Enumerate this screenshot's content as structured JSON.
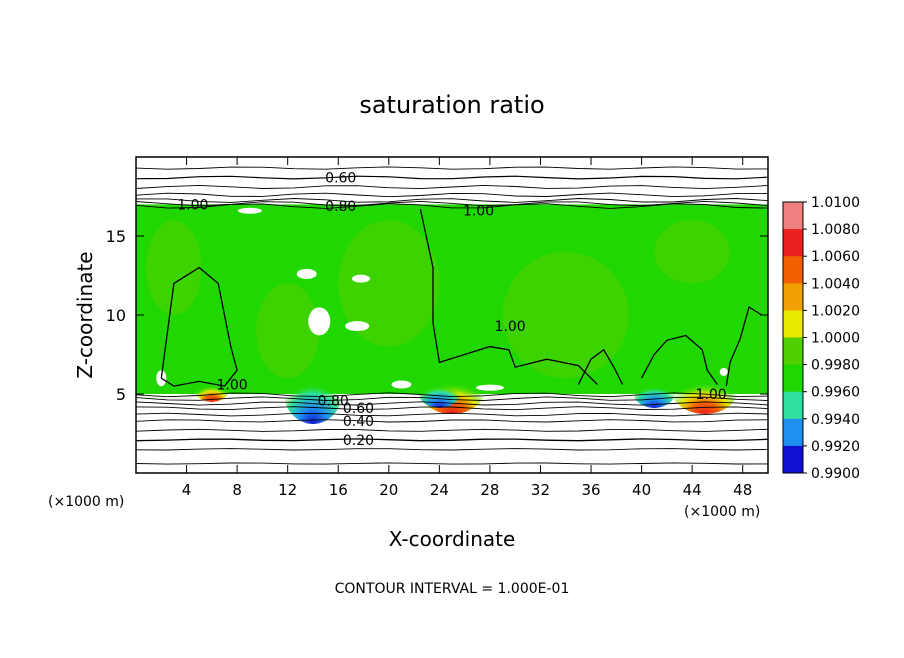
{
  "chart_data": {
    "type": "heatmap",
    "title": "saturation ratio",
    "xlabel": "X-coordinate",
    "ylabel": "Z-coordinate",
    "x_units": "(×1000 m)",
    "y_units": "(×1000 m)",
    "xlim": [
      0,
      50
    ],
    "ylim": [
      0,
      20
    ],
    "x_ticks": [
      4,
      8,
      12,
      16,
      20,
      24,
      28,
      32,
      36,
      40,
      44,
      48
    ],
    "y_ticks": [
      5,
      10,
      15
    ],
    "footer": "CONTOUR INTERVAL = 1.000E-01",
    "colorbar": {
      "levels": [
        "1.0100",
        "1.0080",
        "1.0060",
        "1.0040",
        "1.0020",
        "1.0000",
        "0.9980",
        "0.9960",
        "0.9940",
        "0.9920",
        "0.9900"
      ],
      "colors": [
        "#f08080",
        "#e82020",
        "#f06000",
        "#f0a000",
        "#e8e800",
        "#50d000",
        "#20d800",
        "#30e0a0",
        "#2090f0",
        "#1010d0",
        "#6010a0"
      ]
    },
    "contour_labels": [
      {
        "text": "0.60",
        "x": 16.2,
        "z": 18.7
      },
      {
        "text": "0.80",
        "x": 16.2,
        "z": 16.9
      },
      {
        "text": "1.00",
        "x": 4.5,
        "z": 17.0
      },
      {
        "text": "1.00",
        "x": 27.1,
        "z": 16.6
      },
      {
        "text": "1.00",
        "x": 29.6,
        "z": 9.3
      },
      {
        "text": "1.00",
        "x": 7.6,
        "z": 5.6
      },
      {
        "text": "1.00",
        "x": 45.5,
        "z": 5.0
      },
      {
        "text": "0.80",
        "x": 15.6,
        "z": 4.6
      },
      {
        "text": "0.60",
        "x": 17.6,
        "z": 4.1
      },
      {
        "text": "0.40",
        "x": 17.6,
        "z": 3.3
      },
      {
        "text": "0.20",
        "x": 17.6,
        "z": 2.1
      }
    ],
    "field_summary": {
      "saturated_layer_z": [
        5,
        17
      ],
      "near_one_color": "#20d800",
      "supersaturated_peaks_x": [
        6,
        25,
        45
      ],
      "subsaturated_dips_x": [
        14,
        24,
        41
      ]
    }
  }
}
